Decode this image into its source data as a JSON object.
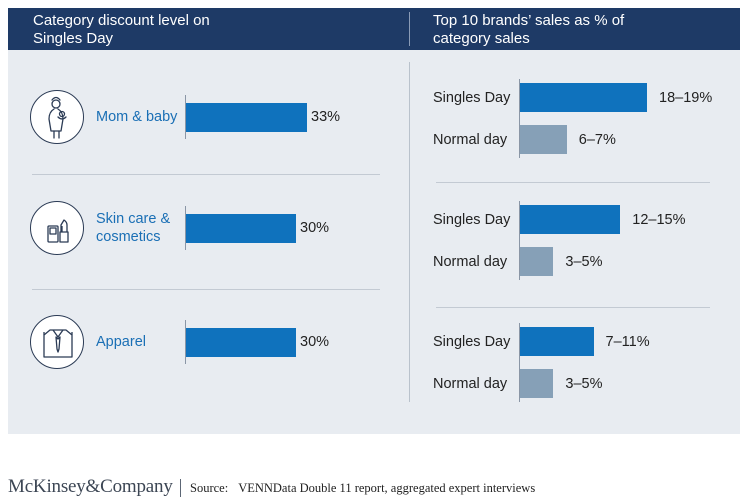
{
  "header": {
    "left_title_line1": "Category discount level on",
    "left_title_line2": "Singles Day",
    "right_title_line1": "Top 10 brands’ sales as % of",
    "right_title_line2": "category sales"
  },
  "colors": {
    "header_bg": "#1e3a66",
    "singles_day_bar": "#0f72bd",
    "normal_day_bar": "#86a0b7",
    "category_text": "#1a6fb5"
  },
  "chart_data": [
    {
      "type": "bar",
      "orientation": "horizontal",
      "title": "Category discount level on Singles Day",
      "categories": [
        "Mom & baby",
        "Skin care & cosmetics",
        "Apparel"
      ],
      "category_lines": [
        [
          "Mom & baby"
        ],
        [
          "Skin care &",
          "cosmetics"
        ],
        [
          "Apparel"
        ]
      ],
      "icons": [
        "mother-baby-icon",
        "cosmetics-icon",
        "shirt-icon"
      ],
      "values": [
        33,
        30,
        30
      ],
      "value_labels": [
        "33%",
        "30%",
        "30%"
      ],
      "xlim": [
        0,
        45
      ],
      "grid": false
    },
    {
      "type": "bar",
      "orientation": "horizontal",
      "title": "Top 10 brands’ sales as % of category sales",
      "groups": [
        "Mom & baby",
        "Skin care & cosmetics",
        "Apparel"
      ],
      "series_names": [
        "Singles Day",
        "Normal day"
      ],
      "data": [
        {
          "singles_day": [
            18,
            19
          ],
          "singles_day_label": "18–19%",
          "normal_day": [
            6,
            7
          ],
          "normal_day_label": "6–7%"
        },
        {
          "singles_day": [
            12,
            15
          ],
          "singles_day_label": "12–15%",
          "normal_day": [
            3,
            5
          ],
          "normal_day_label": "3–5%"
        },
        {
          "singles_day": [
            7,
            11
          ],
          "singles_day_label": "7–11%",
          "normal_day": [
            3,
            5
          ],
          "normal_day_label": "3–5%"
        }
      ],
      "xlim": [
        0,
        25
      ],
      "grid": false
    }
  ],
  "footer": {
    "logo": "McKinsey&Company",
    "source_key": "Source:",
    "source_text": "VENNData Double 11 report, aggregated expert interviews"
  }
}
